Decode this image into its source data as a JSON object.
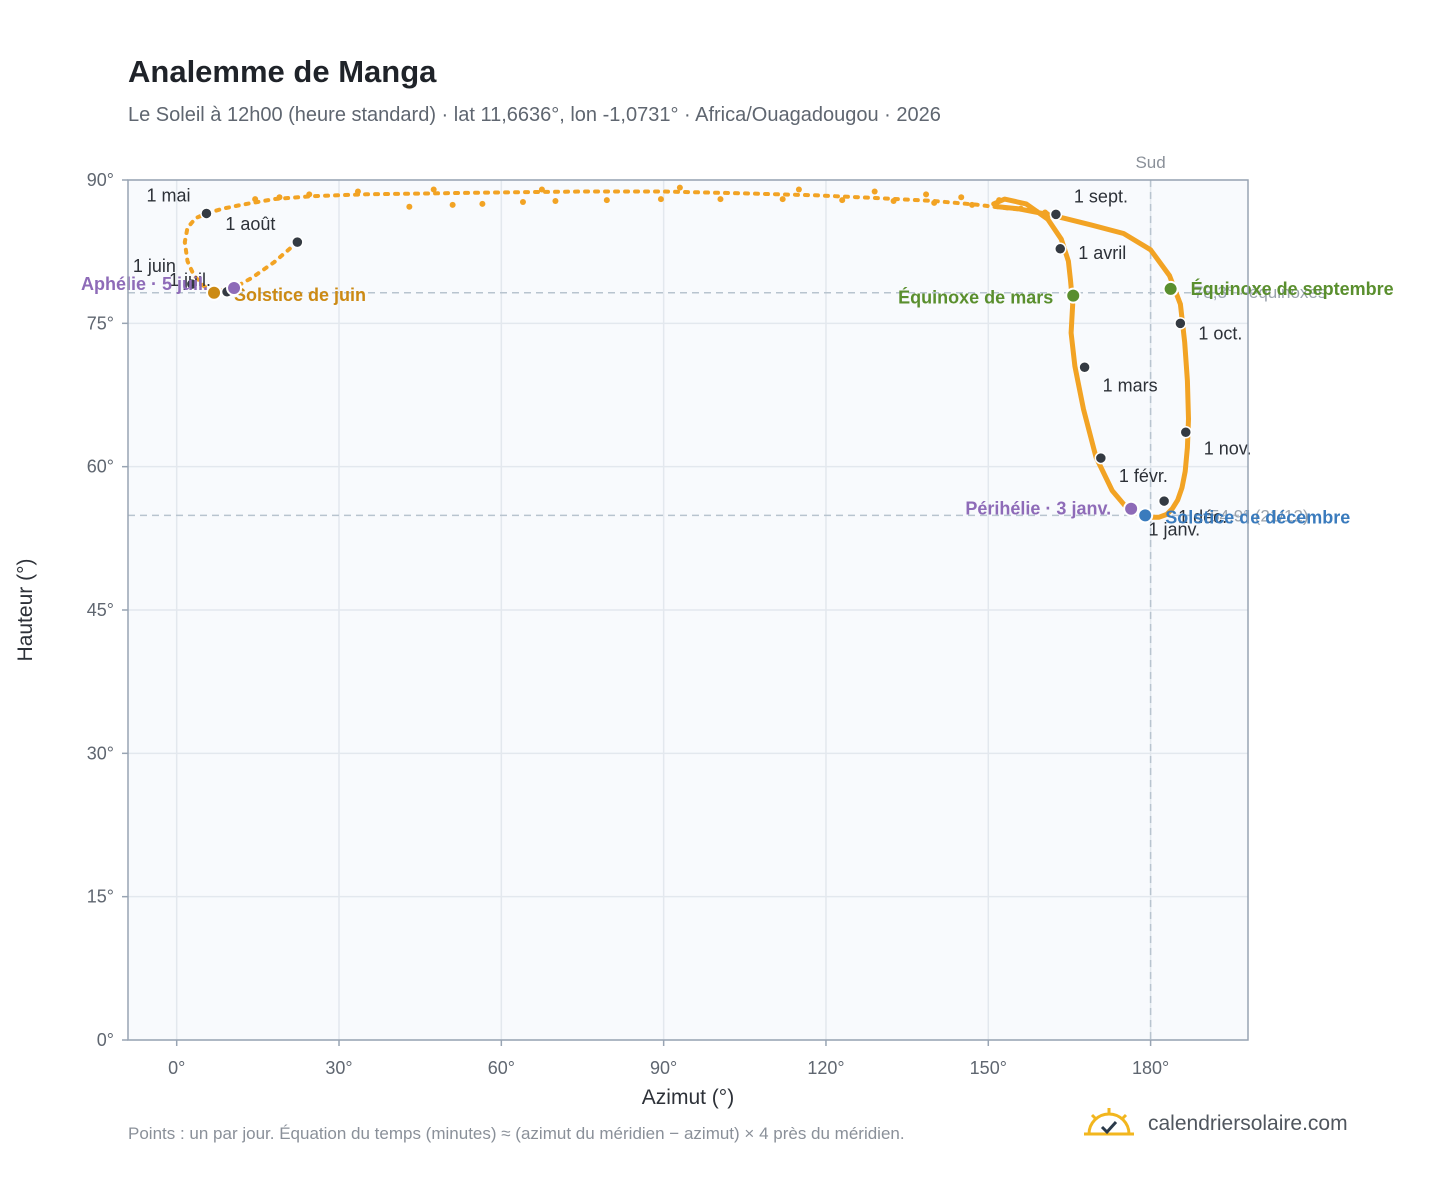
{
  "title": "Analemme de Manga",
  "subtitle": "Le Soleil à 12h00 (heure standard) · lat 11,6636°, lon -1,0731° · Africa/Ouagadougou · 2026",
  "footnote": "Points : un par jour. Équation du temps (minutes) ≈ (azimut du méridien − azimut) × 4 près du méridien.",
  "brand": {
    "text": "calendriersolaire.com",
    "icon": "sun-check-icon"
  },
  "colors": {
    "curve": "#f2a324",
    "date_marker": "#343a42",
    "equinox": "#5a8f2e",
    "solstice_june": "#cc8a14",
    "solstice_december": "#3a7bbd",
    "aphelion_perihelion": "#8e6bb8",
    "guide": "#b8c4cf",
    "plot_bg": "#f8fafd",
    "frame": "#98a4b3"
  },
  "chart_data": {
    "type": "scatter",
    "xlabel": "Azimut (°)",
    "ylabel": "Hauteur (°)",
    "xlim": [
      -9,
      198
    ],
    "ylim": [
      0,
      90
    ],
    "xticks": [
      0,
      30,
      60,
      90,
      120,
      150,
      180
    ],
    "yticks": [
      0,
      15,
      30,
      45,
      60,
      75,
      90
    ],
    "x_tick_labels": [
      "0°",
      "30°",
      "60°",
      "90°",
      "120°",
      "150°",
      "180°"
    ],
    "y_tick_labels": [
      "0°",
      "15°",
      "30°",
      "45°",
      "60°",
      "75°",
      "90°"
    ],
    "grid": true,
    "meridian": {
      "azimuth": 180,
      "label": "Sud"
    },
    "guide_altitudes": [
      78.2,
      54.9
    ],
    "curve": {
      "name": "daily sun position",
      "x": [
        178.5,
        175.9,
        172.9,
        169.9,
        167.6,
        166.0,
        165.3,
        165.6,
        165.2,
        164.8,
        163.5,
        161.0,
        157.0,
        153.0,
        151.0,
        151.8,
        155.5,
        160.0,
        164.0,
        169.0,
        175.0,
        180.0,
        183.5,
        185.5,
        186.3,
        186.8,
        187.0,
        186.8,
        186.4,
        185.8,
        185.0,
        184.0,
        183.0,
        181.5,
        179.5,
        178.5
      ],
      "y": [
        54.9,
        55.5,
        57.5,
        61.0,
        66.0,
        70.5,
        74.0,
        77.0,
        79.5,
        81.5,
        83.8,
        85.9,
        87.5,
        88.0,
        87.5,
        87.2,
        87.0,
        86.5,
        86.0,
        85.3,
        84.4,
        82.7,
        80.0,
        77.0,
        73.0,
        69.0,
        65.0,
        62.0,
        59.5,
        57.8,
        56.5,
        55.6,
        55.0,
        54.7,
        54.7,
        54.9
      ]
    },
    "overhead_loop": {
      "x": [
        22.3,
        18.0,
        14.0,
        10.6,
        8.0,
        7.0,
        6.0,
        4.8,
        3.2,
        2.0,
        1.5,
        2.0,
        3.5,
        5.5,
        8.5,
        12.0,
        18.0,
        25.0,
        35.0,
        47.0,
        60.0,
        75.0,
        90.0,
        105.0,
        118.0,
        130.0,
        140.0,
        148.0,
        154.0,
        158.5,
        163.0
      ],
      "y": [
        83.5,
        81.4,
        79.8,
        78.7,
        78.4,
        78.2,
        78.5,
        79.0,
        80.0,
        81.5,
        83.5,
        85.0,
        86.0,
        86.5,
        87.0,
        87.4,
        88.0,
        88.3,
        88.5,
        88.6,
        88.7,
        88.8,
        88.8,
        88.6,
        88.4,
        88.1,
        87.8,
        87.4,
        87.0,
        86.8,
        86.3
      ]
    },
    "sparse_points": {
      "x": [
        19.0,
        24.5,
        33.5,
        47.5,
        67.5,
        93.0,
        115.0,
        129.0,
        138.5,
        145.0,
        152.0,
        14.5,
        43.0,
        51.0,
        56.5,
        64.0,
        70.0,
        79.5,
        89.5,
        100.5,
        112.0,
        123.0,
        132.5,
        140.0,
        147.0,
        156.0,
        160.5
      ],
      "y": [
        88.2,
        88.5,
        88.8,
        89.0,
        89.0,
        89.2,
        89.0,
        88.8,
        88.5,
        88.2,
        87.9,
        88.0,
        87.2,
        87.4,
        87.5,
        87.7,
        87.8,
        87.9,
        88.0,
        88.0,
        88.0,
        87.9,
        87.8,
        87.6,
        87.4,
        87.0,
        86.6
      ]
    },
    "month_markers": [
      {
        "label": "1 janv.",
        "x": 178.5,
        "y": 54.9
      },
      {
        "label": "1 févr.",
        "x": 170.8,
        "y": 60.9
      },
      {
        "label": "1 mars",
        "x": 167.8,
        "y": 70.4
      },
      {
        "label": "1 avril",
        "x": 163.3,
        "y": 82.8
      },
      {
        "label": "1 mai",
        "x": 5.5,
        "y": 86.5
      },
      {
        "label": "1 juin",
        "x": 2.8,
        "y": 79.1
      },
      {
        "label": "1 juil.",
        "x": 9.3,
        "y": 78.3
      },
      {
        "label": "1 août",
        "x": 22.3,
        "y": 83.5
      },
      {
        "label": "1 sept.",
        "x": 162.5,
        "y": 86.4
      },
      {
        "label": "1 oct.",
        "x": 185.5,
        "y": 75.0
      },
      {
        "label": "1 nov.",
        "x": 186.5,
        "y": 63.6
      },
      {
        "label": "1 déc.",
        "x": 182.5,
        "y": 56.4
      }
    ],
    "events": [
      {
        "label": "Équinoxe de mars",
        "x": 165.7,
        "y": 77.9,
        "kind": "equinox"
      },
      {
        "label": "Équinoxe de septembre",
        "x": 183.7,
        "y": 78.6,
        "kind": "equinox"
      },
      {
        "label": "Solstice de juin",
        "x": 6.9,
        "y": 78.2,
        "kind": "solstice_june"
      },
      {
        "label": "Solstice de décembre",
        "x": 179.0,
        "y": 54.9,
        "kind": "solstice_december"
      },
      {
        "label": "Aphélie · 5 juil.",
        "x": 10.6,
        "y": 78.7,
        "kind": "aphelion_perihelion"
      },
      {
        "label": "Périhélie · 3 janv.",
        "x": 176.4,
        "y": 55.6,
        "kind": "aphelion_perihelion"
      }
    ],
    "faint_annotations": [
      {
        "text": "78,3° · équinoxes",
        "x": 188.0,
        "y": 78.3
      },
      {
        "text": "54,9° (21/12)",
        "x": 191.0,
        "y": 54.9
      }
    ]
  }
}
